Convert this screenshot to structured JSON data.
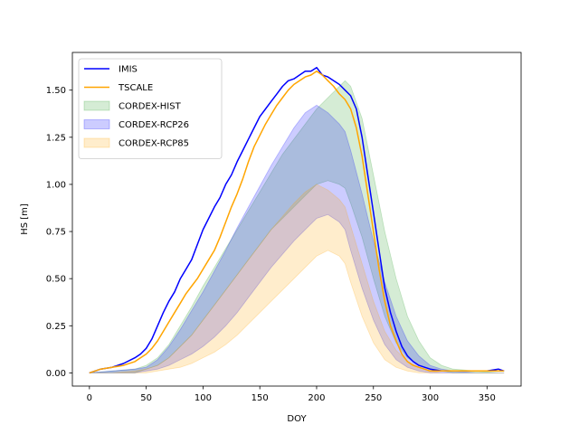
{
  "chart_data": {
    "type": "area",
    "title": "",
    "xlabel": "DOY",
    "ylabel": "HS [m]",
    "xlim": [
      -15,
      380
    ],
    "ylim": [
      -0.07,
      1.7
    ],
    "xticks": [
      "0",
      "50",
      "100",
      "150",
      "200",
      "250",
      "300",
      "350"
    ],
    "xtick_values": [
      0,
      50,
      100,
      150,
      200,
      250,
      300,
      350
    ],
    "yticks": [
      "0.00",
      "0.25",
      "0.50",
      "0.75",
      "1.00",
      "1.25",
      "1.50"
    ],
    "ytick_values": [
      0,
      0.25,
      0.5,
      0.75,
      1.0,
      1.25,
      1.5
    ],
    "grid": false,
    "legend_position": "upper-left",
    "series": [
      {
        "name": "IMIS",
        "kind": "line",
        "color": "#0000ff",
        "x": [
          0,
          10,
          20,
          30,
          40,
          45,
          50,
          55,
          60,
          65,
          70,
          75,
          80,
          85,
          90,
          95,
          100,
          105,
          110,
          115,
          120,
          125,
          130,
          135,
          140,
          145,
          150,
          155,
          160,
          165,
          170,
          175,
          180,
          185,
          190,
          195,
          200,
          205,
          210,
          215,
          220,
          225,
          230,
          235,
          240,
          245,
          250,
          255,
          260,
          265,
          270,
          275,
          280,
          285,
          290,
          295,
          300,
          310,
          320,
          330,
          340,
          350,
          360,
          365
        ],
        "y": [
          0.0,
          0.02,
          0.03,
          0.05,
          0.08,
          0.1,
          0.13,
          0.18,
          0.25,
          0.32,
          0.38,
          0.43,
          0.5,
          0.55,
          0.6,
          0.68,
          0.76,
          0.82,
          0.88,
          0.93,
          1.0,
          1.05,
          1.12,
          1.18,
          1.24,
          1.3,
          1.36,
          1.4,
          1.44,
          1.48,
          1.52,
          1.55,
          1.56,
          1.58,
          1.6,
          1.6,
          1.62,
          1.58,
          1.57,
          1.55,
          1.53,
          1.5,
          1.47,
          1.4,
          1.25,
          1.05,
          0.85,
          0.65,
          0.45,
          0.32,
          0.22,
          0.14,
          0.09,
          0.06,
          0.04,
          0.03,
          0.02,
          0.01,
          0.01,
          0.01,
          0.01,
          0.01,
          0.02,
          0.01
        ]
      },
      {
        "name": "TSCALE",
        "kind": "line",
        "color": "#ffa500",
        "x": [
          0,
          10,
          20,
          30,
          40,
          45,
          50,
          55,
          60,
          65,
          70,
          75,
          80,
          85,
          90,
          95,
          100,
          105,
          110,
          115,
          120,
          125,
          130,
          135,
          140,
          145,
          150,
          155,
          160,
          165,
          170,
          175,
          180,
          185,
          190,
          195,
          200,
          205,
          210,
          215,
          220,
          225,
          230,
          235,
          240,
          245,
          250,
          255,
          260,
          265,
          270,
          275,
          280,
          285,
          290,
          295,
          300,
          310,
          320,
          330,
          340,
          350,
          360,
          365
        ],
        "y": [
          0.0,
          0.02,
          0.03,
          0.04,
          0.06,
          0.08,
          0.1,
          0.13,
          0.17,
          0.22,
          0.27,
          0.32,
          0.37,
          0.42,
          0.46,
          0.5,
          0.55,
          0.6,
          0.65,
          0.72,
          0.8,
          0.88,
          0.95,
          1.03,
          1.12,
          1.2,
          1.26,
          1.32,
          1.37,
          1.42,
          1.46,
          1.5,
          1.53,
          1.55,
          1.57,
          1.58,
          1.6,
          1.58,
          1.55,
          1.52,
          1.48,
          1.45,
          1.4,
          1.3,
          1.15,
          0.95,
          0.75,
          0.55,
          0.38,
          0.25,
          0.17,
          0.1,
          0.06,
          0.04,
          0.03,
          0.02,
          0.01,
          0.01,
          0.01,
          0.01,
          0.01,
          0.01,
          0.01,
          0.01
        ]
      },
      {
        "name": "CORDEX-HIST",
        "kind": "band",
        "color": "#2ca02c",
        "x": [
          0,
          20,
          40,
          50,
          60,
          70,
          80,
          90,
          100,
          110,
          120,
          130,
          140,
          150,
          160,
          170,
          180,
          190,
          200,
          210,
          220,
          225,
          230,
          240,
          250,
          260,
          270,
          280,
          290,
          300,
          310,
          320,
          340,
          360,
          365
        ],
        "lower": [
          0.0,
          0.0,
          0.0,
          0.02,
          0.04,
          0.08,
          0.14,
          0.2,
          0.28,
          0.36,
          0.44,
          0.52,
          0.6,
          0.68,
          0.76,
          0.82,
          0.88,
          0.94,
          1.0,
          1.02,
          1.0,
          0.98,
          0.9,
          0.72,
          0.5,
          0.3,
          0.16,
          0.08,
          0.04,
          0.02,
          0.01,
          0.0,
          0.0,
          0.0,
          0.0
        ],
        "upper": [
          0.0,
          0.01,
          0.02,
          0.04,
          0.08,
          0.15,
          0.25,
          0.35,
          0.46,
          0.56,
          0.66,
          0.76,
          0.86,
          0.96,
          1.06,
          1.16,
          1.24,
          1.32,
          1.4,
          1.46,
          1.52,
          1.55,
          1.52,
          1.35,
          1.05,
          0.75,
          0.5,
          0.3,
          0.17,
          0.08,
          0.04,
          0.02,
          0.01,
          0.0,
          0.0
        ]
      },
      {
        "name": "CORDEX-RCP26",
        "kind": "band",
        "color": "#0000ff",
        "x": [
          0,
          20,
          40,
          50,
          60,
          70,
          80,
          90,
          100,
          110,
          120,
          130,
          140,
          150,
          160,
          170,
          180,
          190,
          200,
          210,
          220,
          225,
          230,
          240,
          250,
          260,
          270,
          280,
          290,
          300,
          310,
          320,
          340,
          360,
          365
        ],
        "lower": [
          0.0,
          0.0,
          0.0,
          0.01,
          0.02,
          0.04,
          0.07,
          0.1,
          0.14,
          0.19,
          0.25,
          0.32,
          0.4,
          0.48,
          0.56,
          0.63,
          0.7,
          0.76,
          0.82,
          0.84,
          0.8,
          0.76,
          0.65,
          0.45,
          0.28,
          0.15,
          0.07,
          0.03,
          0.01,
          0.0,
          0.0,
          0.0,
          0.0,
          0.0,
          0.0
        ],
        "upper": [
          0.0,
          0.01,
          0.02,
          0.03,
          0.07,
          0.14,
          0.23,
          0.33,
          0.43,
          0.54,
          0.65,
          0.77,
          0.88,
          0.99,
          1.1,
          1.2,
          1.3,
          1.38,
          1.42,
          1.38,
          1.32,
          1.28,
          1.18,
          0.95,
          0.7,
          0.48,
          0.3,
          0.17,
          0.09,
          0.04,
          0.02,
          0.01,
          0.0,
          0.0,
          0.0
        ]
      },
      {
        "name": "CORDEX-RCP85",
        "kind": "band",
        "color": "#ffa500",
        "x": [
          0,
          20,
          40,
          50,
          60,
          70,
          80,
          90,
          100,
          110,
          120,
          130,
          140,
          150,
          160,
          170,
          180,
          190,
          200,
          210,
          220,
          225,
          230,
          240,
          250,
          260,
          270,
          280,
          290,
          300,
          310,
          320,
          340,
          360,
          365
        ],
        "lower": [
          0.0,
          0.0,
          0.0,
          0.0,
          0.01,
          0.02,
          0.03,
          0.05,
          0.08,
          0.11,
          0.15,
          0.2,
          0.26,
          0.32,
          0.38,
          0.44,
          0.5,
          0.56,
          0.62,
          0.65,
          0.62,
          0.58,
          0.48,
          0.3,
          0.16,
          0.07,
          0.03,
          0.01,
          0.0,
          0.0,
          0.0,
          0.0,
          0.0,
          0.0,
          0.0
        ],
        "upper": [
          0.0,
          0.0,
          0.01,
          0.02,
          0.04,
          0.08,
          0.14,
          0.2,
          0.28,
          0.36,
          0.44,
          0.52,
          0.6,
          0.68,
          0.76,
          0.83,
          0.9,
          0.96,
          1.0,
          0.97,
          0.92,
          0.88,
          0.78,
          0.58,
          0.38,
          0.22,
          0.12,
          0.06,
          0.03,
          0.01,
          0.0,
          0.0,
          0.0,
          0.0,
          0.0
        ]
      }
    ]
  }
}
